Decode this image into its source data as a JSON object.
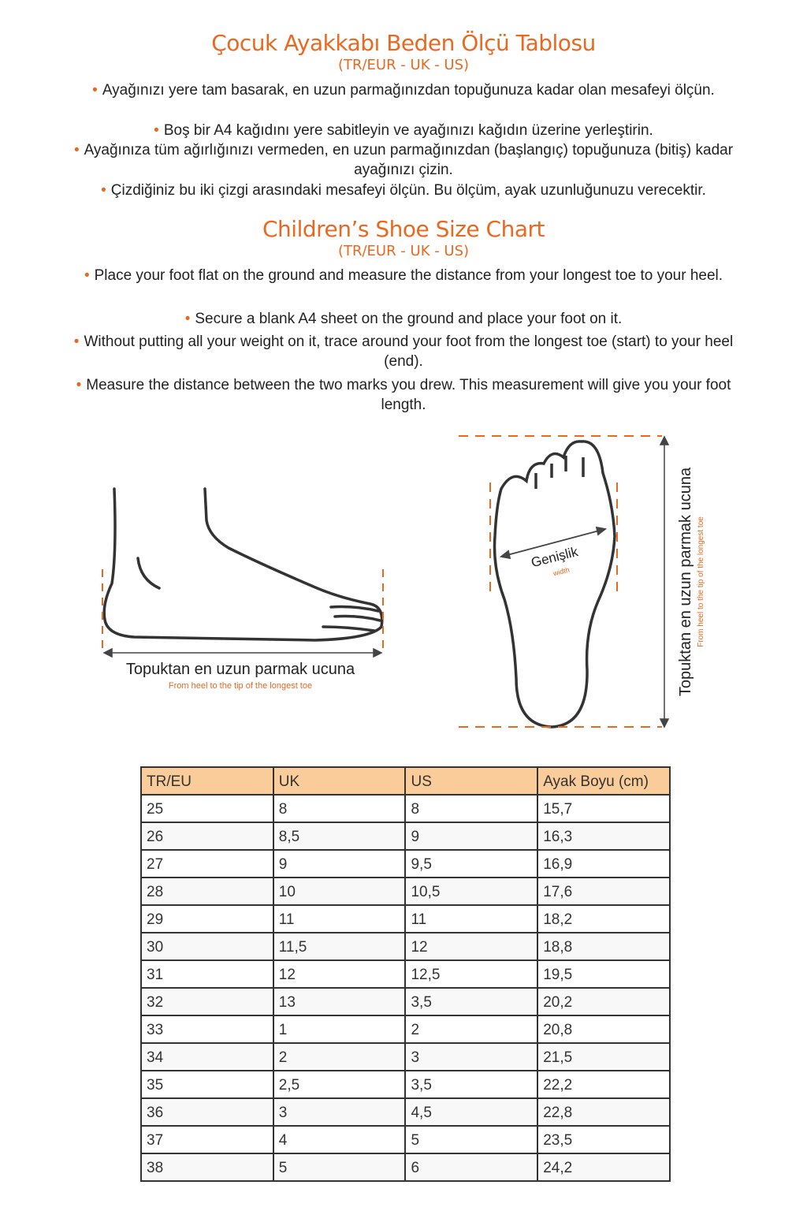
{
  "tr": {
    "title": "Çocuk Ayakkabı Beden Ölçü Tablosu",
    "subtitle": "(TR/EUR - UK - US)",
    "steps": [
      "Ayağınızı yere tam basarak, en uzun parmağınızdan topuğunuza kadar olan mesafeyi ölçün.",
      "Boş bir A4 kağıdını yere sabitleyin ve ayağınızı kağıdın üzerine yerleştirin.",
      "Ayağınıza tüm ağırlığınızı vermeden, en uzun parmağınızdan (başlangıç) topuğunuza (bitiş) kadar ayağınızı çizin.",
      "Çizdiğiniz bu iki çizgi arasındaki mesafeyi ölçün. Bu ölçüm, ayak uzunluğunuzu verecektir."
    ]
  },
  "en": {
    "title": "Children’s Shoe Size Chart",
    "subtitle": "(TR/EUR - UK - US)",
    "steps": [
      "Place your foot flat on the ground and measure the distance from your longest toe to your heel.",
      "Secure a blank A4 sheet on the ground and place your foot on it.",
      "Without putting all your weight on it, trace around your foot from the longest toe (start) to your heel (end).",
      "Measure the distance between the two marks you drew. This measurement will give you your foot length."
    ]
  },
  "diagram": {
    "side_label": "Topuktan en uzun parmak ucuna",
    "side_sublabel": "From heel to the tip of the longest toe",
    "width_label": "Genişlik",
    "width_sublabel": "width",
    "length_label": "Topuktan en uzun parmak ucuna",
    "length_sublabel": "From heel to the tip of the longest toe"
  },
  "colors": {
    "accent": "#e8691f",
    "header_bg": "#f9cc9a"
  },
  "table": {
    "headers": [
      "TR/EU",
      "UK",
      "US",
      "Ayak Boyu (cm)"
    ],
    "rows": [
      [
        "25",
        "8",
        "8",
        "15,7"
      ],
      [
        "26",
        "8,5",
        "9",
        "16,3"
      ],
      [
        "27",
        "9",
        "9,5",
        "16,9"
      ],
      [
        "28",
        "10",
        "10,5",
        "17,6"
      ],
      [
        "29",
        "11",
        "11",
        "18,2"
      ],
      [
        "30",
        "11,5",
        "12",
        "18,8"
      ],
      [
        "31",
        "12",
        "12,5",
        "19,5"
      ],
      [
        "32",
        "13",
        "3,5",
        "20,2"
      ],
      [
        "33",
        "1",
        "2",
        "20,8"
      ],
      [
        "34",
        "2",
        "3",
        "21,5"
      ],
      [
        "35",
        "2,5",
        "3,5",
        "22,2"
      ],
      [
        "36",
        "3",
        "4,5",
        "22,8"
      ],
      [
        "37",
        "4",
        "5",
        "23,5"
      ],
      [
        "38",
        "5",
        "6",
        "24,2"
      ]
    ]
  }
}
